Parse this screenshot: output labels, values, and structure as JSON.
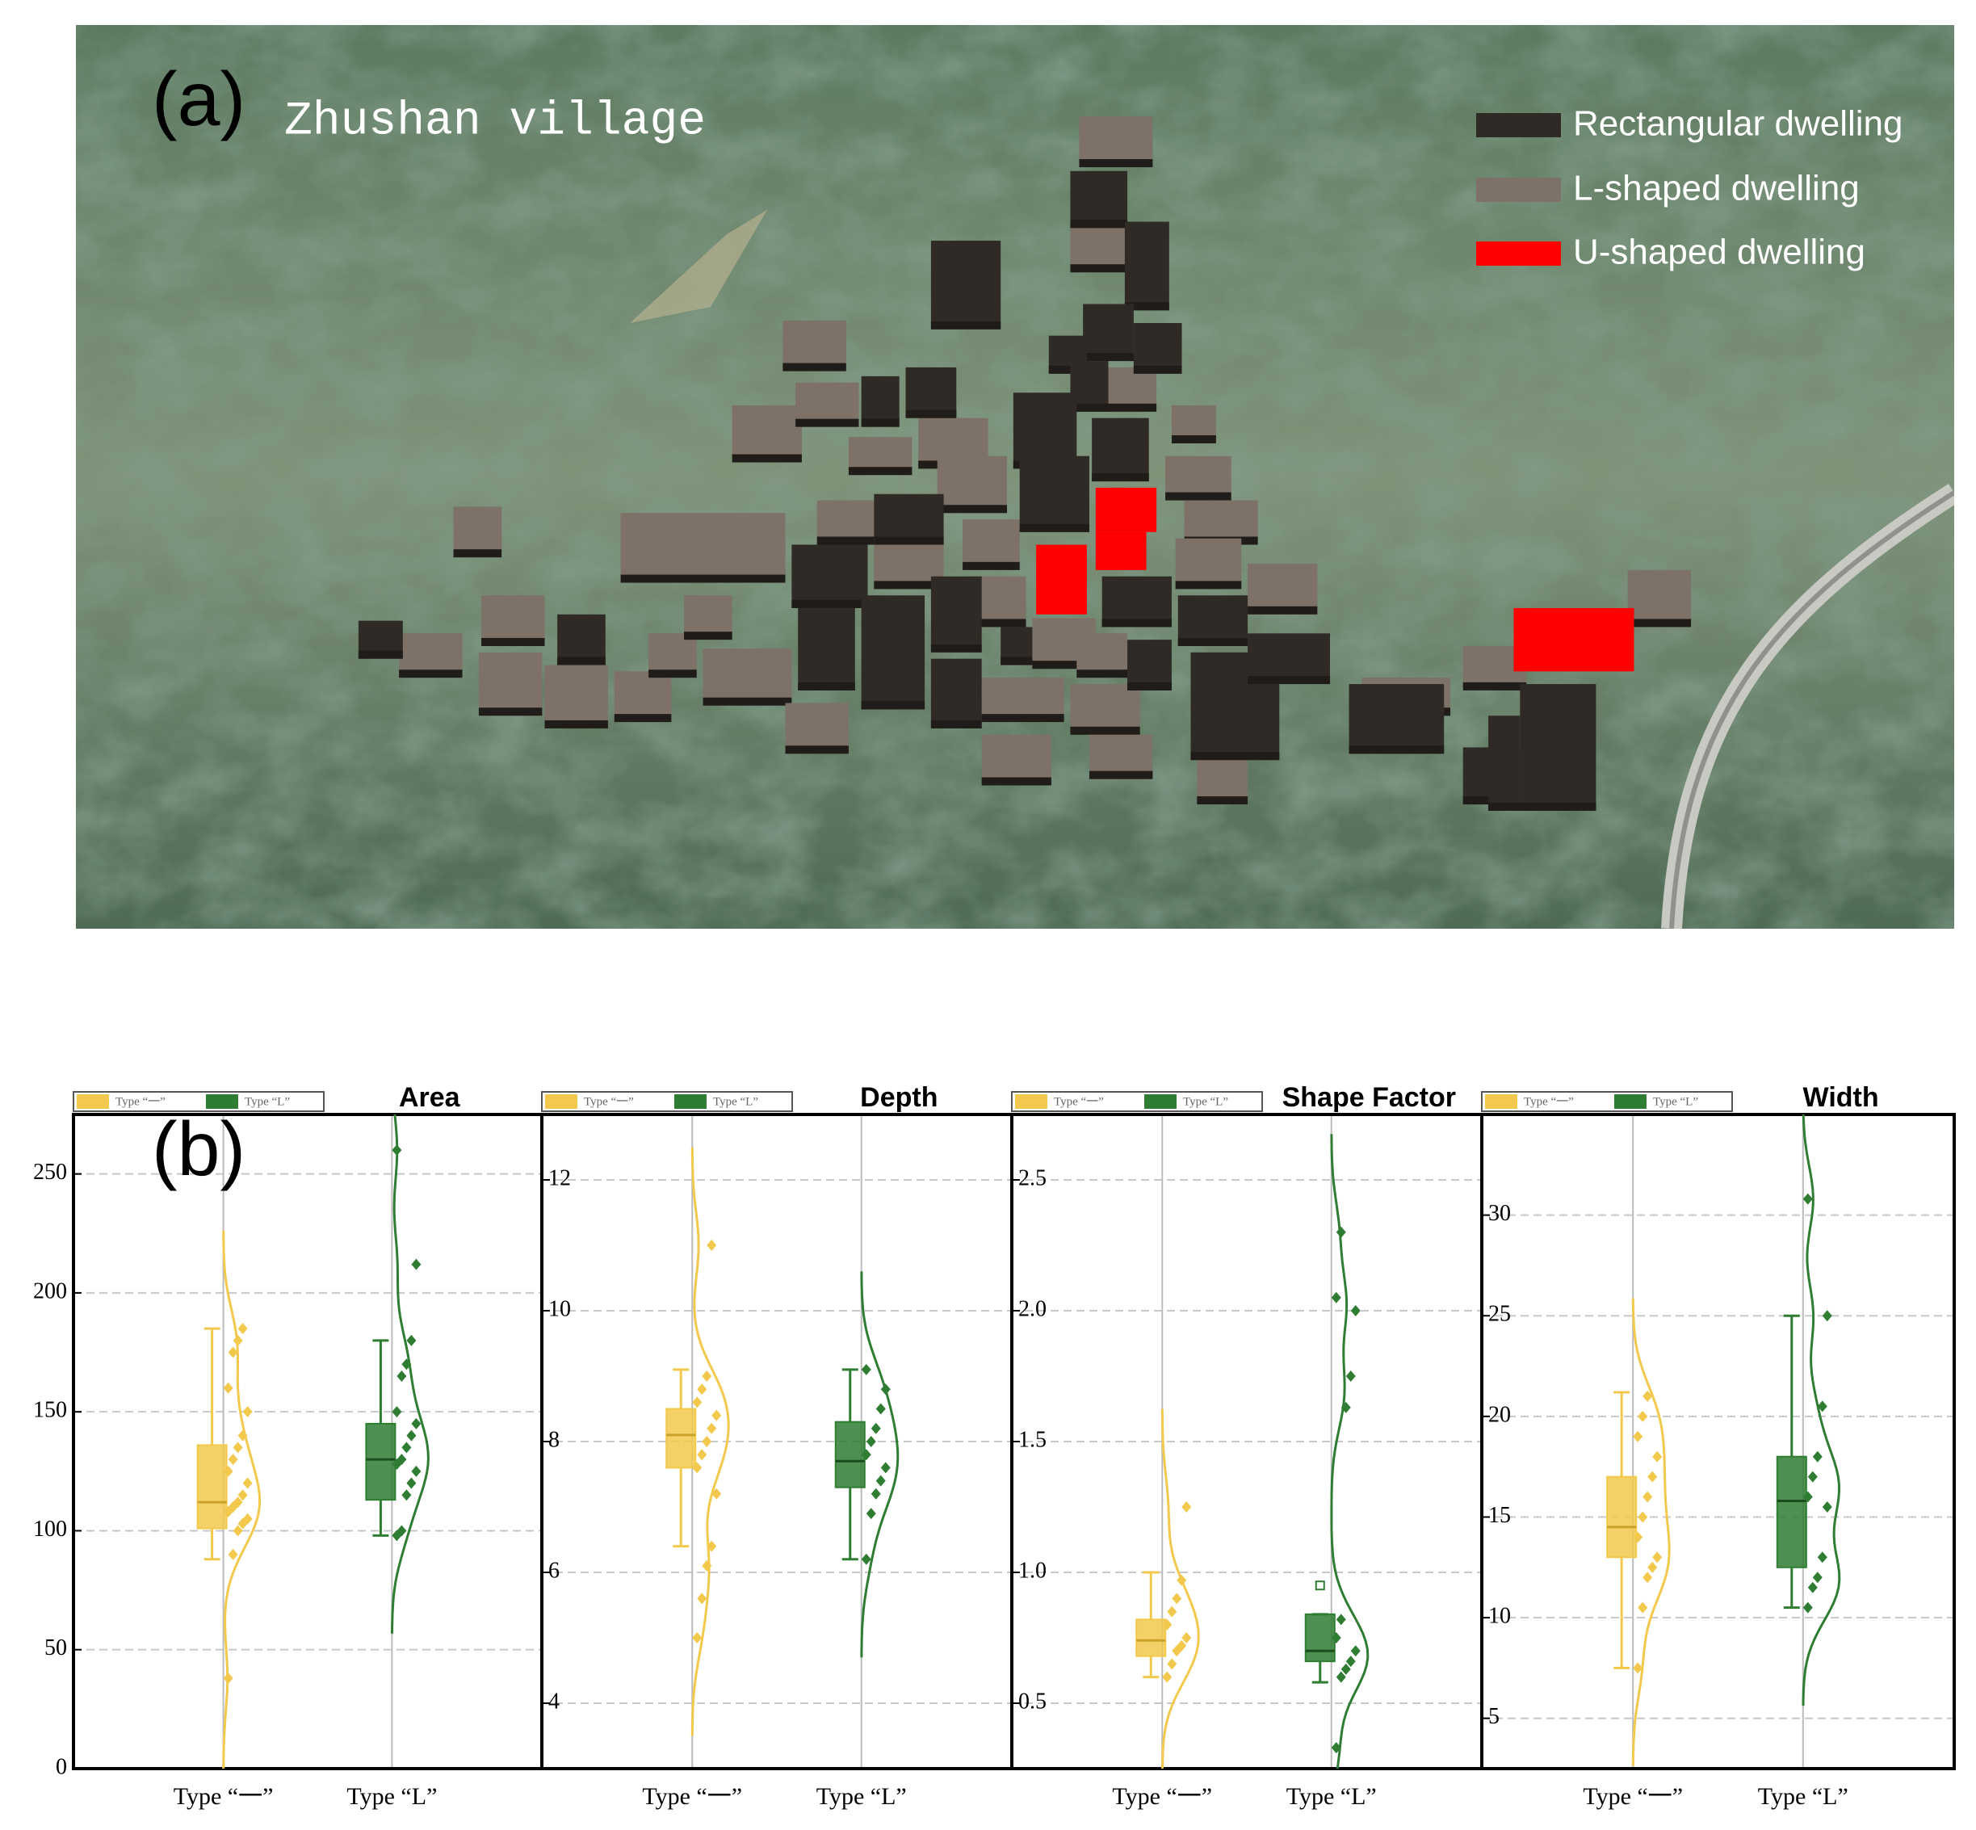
{
  "map": {
    "label": "(a)",
    "title": "Zhushan village",
    "legend": [
      "Rectangular dwelling",
      "L-shaped dwelling",
      "U-shaped dwelling"
    ]
  },
  "panel_label": "(b)",
  "chart_data": [
    {
      "type": "box",
      "title": "Area",
      "categories": [
        "Type “一”",
        "Type “L”"
      ],
      "ylim": [
        0,
        275
      ],
      "yticks": [
        0,
        50,
        100,
        150,
        200,
        250
      ],
      "boxes": [
        {
          "name": "Type “一”",
          "color": "#f2c94c",
          "min": 88,
          "q1": 101,
          "median": 112,
          "q3": 136,
          "max": 185,
          "points": [
            38,
            90,
            100,
            103,
            105,
            108,
            110,
            112,
            115,
            120,
            125,
            130,
            135,
            140,
            150,
            160,
            175,
            180,
            185
          ]
        },
        {
          "name": "Type “L”",
          "color": "#2e7d32",
          "min": 98,
          "q1": 113,
          "median": 130,
          "q3": 145,
          "max": 180,
          "points": [
            98,
            100,
            115,
            120,
            125,
            128,
            130,
            135,
            140,
            145,
            150,
            165,
            170,
            180,
            212,
            260
          ]
        }
      ]
    },
    {
      "type": "box",
      "title": "Depth",
      "categories": [
        "Type “一”",
        "Type “L”"
      ],
      "ylim": [
        3,
        13
      ],
      "yticks": [
        4,
        6,
        8,
        10,
        12
      ],
      "boxes": [
        {
          "name": "Type “一”",
          "color": "#f2c94c",
          "min": 6.4,
          "q1": 7.6,
          "median": 8.1,
          "q3": 8.5,
          "max": 9.1,
          "points": [
            5.0,
            5.6,
            6.1,
            6.4,
            7.2,
            7.6,
            7.8,
            8.0,
            8.2,
            8.4,
            8.6,
            8.8,
            9.0,
            11.0
          ]
        },
        {
          "name": "Type “L”",
          "color": "#2e7d32",
          "min": 6.2,
          "q1": 7.3,
          "median": 7.7,
          "q3": 8.3,
          "max": 9.1,
          "points": [
            6.2,
            6.9,
            7.2,
            7.4,
            7.6,
            7.8,
            8.0,
            8.2,
            8.5,
            8.8,
            9.1
          ]
        }
      ]
    },
    {
      "type": "box",
      "title": "Shape Factor",
      "categories": [
        "Type “一”",
        "Type “L”"
      ],
      "ylim": [
        0.25,
        2.75
      ],
      "yticks": [
        0.5,
        {
          "value": 1,
          "label": "1.0"
        },
        1.5,
        {
          "value": 2,
          "label": "2.0"
        },
        2.5
      ],
      "boxes": [
        {
          "name": "Type “一”",
          "color": "#f2c94c",
          "min": 0.6,
          "q1": 0.68,
          "median": 0.74,
          "q3": 0.82,
          "max": 1.0,
          "points": [
            0.6,
            0.65,
            0.7,
            0.72,
            0.75,
            0.8,
            0.85,
            0.9,
            0.97,
            1.25
          ]
        },
        {
          "name": "Type “L”",
          "color": "#2e7d32",
          "min": 0.58,
          "q1": 0.66,
          "median": 0.7,
          "q3": 0.84,
          "max": 0.84,
          "outliers": [
            0.95
          ],
          "points": [
            0.33,
            0.6,
            0.63,
            0.66,
            0.7,
            0.75,
            0.82,
            1.63,
            1.75,
            2.0,
            2.05,
            2.3
          ]
        }
      ]
    },
    {
      "type": "box",
      "title": "Width",
      "categories": [
        "Type “一”",
        "Type “L”"
      ],
      "ylim": [
        2.5,
        35
      ],
      "yticks": [
        5,
        10,
        15,
        20,
        25,
        30
      ],
      "boxes": [
        {
          "name": "Type “一”",
          "color": "#f2c94c",
          "min": 7.5,
          "q1": 13,
          "median": 14.5,
          "q3": 17,
          "max": 21.2,
          "points": [
            7.5,
            10.5,
            12,
            12.5,
            13,
            14,
            15,
            16,
            17,
            18,
            19,
            20,
            21
          ]
        },
        {
          "name": "Type “L”",
          "color": "#2e7d32",
          "min": 10.5,
          "q1": 12.5,
          "median": 15.8,
          "q3": 18,
          "max": 25,
          "points": [
            10.5,
            11.5,
            12,
            13,
            15.5,
            16,
            17,
            18,
            20.5,
            25,
            30.8
          ]
        }
      ]
    }
  ]
}
